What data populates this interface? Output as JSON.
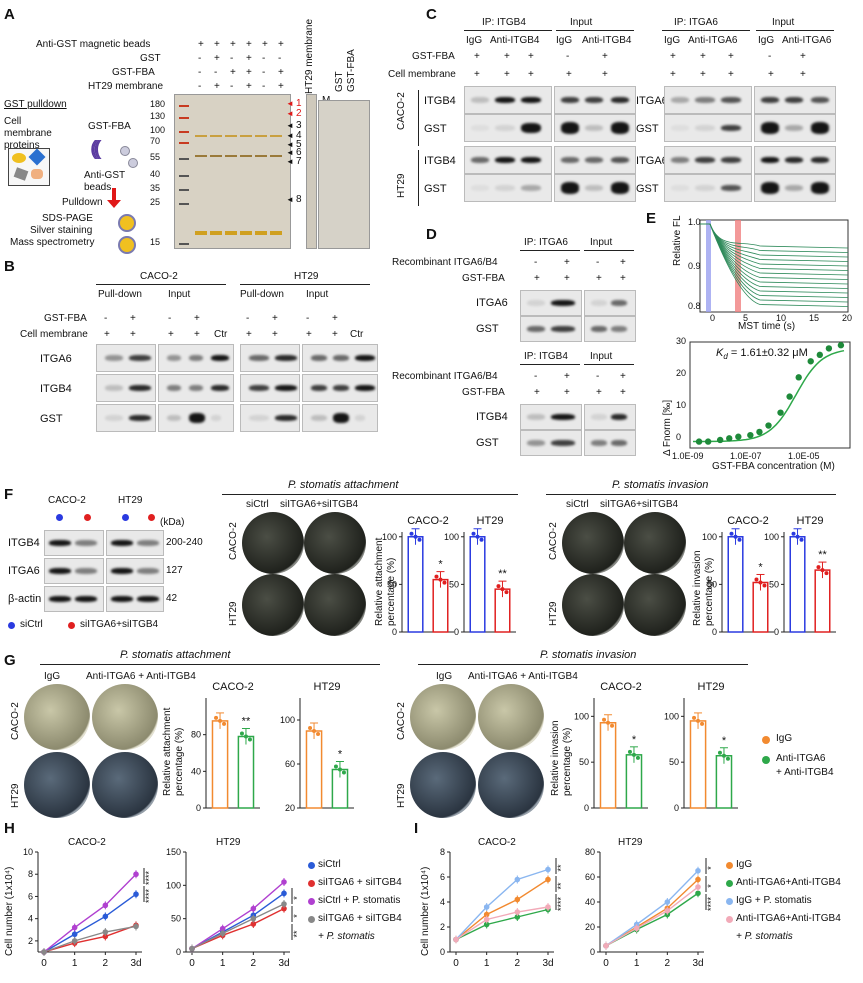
{
  "panels": {
    "A": "A",
    "B": "B",
    "C": "C",
    "D": "D",
    "E": "E",
    "F": "F",
    "G": "G",
    "H": "H",
    "I": "I"
  },
  "A": {
    "rows": [
      {
        "label": "Anti-GST magnetic beads",
        "signs": [
          "+",
          "+",
          "+",
          "+",
          "+",
          "+"
        ]
      },
      {
        "label": "GST",
        "signs": [
          "-",
          "+",
          "-",
          "+",
          "-",
          "-"
        ]
      },
      {
        "label": "GST-FBA",
        "signs": [
          "-",
          "-",
          "+",
          "+",
          "-",
          "+"
        ]
      },
      {
        "label": "HT29 membrane",
        "signs": [
          "-",
          "+",
          "-",
          "+",
          "-",
          "+"
        ]
      }
    ],
    "marker": "M",
    "mw": [
      "180",
      "130",
      "100",
      "70",
      "55",
      "40",
      "35",
      "25",
      "15"
    ],
    "bands": [
      "1",
      "2",
      "3",
      "4",
      "5",
      "6",
      "7",
      "8"
    ],
    "strip": "HT29 membrane",
    "m2": "M",
    "gst": "GST",
    "gstfba": "GST-FBA",
    "scheme": {
      "title": "GST pulldown",
      "cmp": "Cell membrane proteins",
      "gstfba": "GST-FBA",
      "beads": "Anti-GST beads",
      "pulldown": "Pulldown",
      "s1": "SDS-PAGE",
      "s2": "Silver staining",
      "s3": "Mass spectrometry"
    }
  },
  "B": {
    "cell1": "CACO-2",
    "cell2": "HT29",
    "pd": "Pull-down",
    "inp": "Input",
    "row1": "GST-FBA",
    "row2": "Cell membrane",
    "s1": [
      "-",
      "+",
      "-",
      "+",
      ""
    ],
    "s2": [
      "+",
      "+",
      "+",
      "+",
      "Ctr"
    ],
    "blots": [
      "ITGA6",
      "ITGB4",
      "GST"
    ]
  },
  "C": {
    "ip1": "IP: ITGB4",
    "inp": "Input",
    "ip2": "IP: ITGA6",
    "igg": "IgG",
    "anti1": "Anti-ITGB4",
    "anti2": "Anti-ITGA6",
    "row1": "GST-FBA",
    "row2": "Cell membrane",
    "s1": [
      "+",
      "+",
      "+",
      "-",
      "+"
    ],
    "s2": [
      "+",
      "+",
      "+",
      "+",
      "+"
    ],
    "cell1": "CACO-2",
    "cell2": "HT29",
    "left": [
      "ITGB4",
      "GST",
      "ITGB4",
      "GST"
    ],
    "right": [
      "ITGA6",
      "GST",
      "ITGA6",
      "GST"
    ]
  },
  "D": {
    "ip1": "IP: ITGA6",
    "ip2": "IP: ITGB4",
    "inp": "Input",
    "r1": "Recombinant ITGA6/B4",
    "r2": "GST-FBA",
    "s1": [
      "-",
      "+",
      "-",
      "+"
    ],
    "s2": [
      "+",
      "+",
      "+",
      "+"
    ],
    "top": [
      "ITGA6",
      "GST"
    ],
    "bot": [
      "ITGB4",
      "GST"
    ]
  },
  "E": {
    "ylabel1": "Relative FL",
    "xlabel1": "MST time (s)",
    "ylim1": [
      "1.0",
      "0.9",
      "0.8"
    ],
    "xt1": [
      "0",
      "5",
      "10",
      "15",
      "20"
    ],
    "ylabel2": "Δ Fnorm [‰]",
    "xlabel2": "GST-FBA concentration (M)",
    "yt2": [
      "30",
      "20",
      "10",
      "0"
    ],
    "xt2": [
      "1.0E-09",
      "1.0E-07",
      "1.0E-05"
    ],
    "kd_sym": "K",
    "kd_sub": "d",
    "kd_val": "= 1.61±0.32 μM"
  },
  "F": {
    "cell1": "CACO-2",
    "cell2": "HT29",
    "kda": "(kDa)",
    "blots": [
      {
        "n": "ITGB4",
        "kda": "200-240"
      },
      {
        "n": "ITGA6",
        "kda": "127"
      },
      {
        "n": "β-actin",
        "kda": "42"
      }
    ],
    "leg1": "siCtrl",
    "leg2": "siITGA6+siITGB4",
    "att": "P. stomatis attachment",
    "inv": "P. stomatis invasion",
    "siCtrl": "siCtrl",
    "siKD": "siITGA6+siITGB4",
    "ylab_att": "Relative attachment percentage (%)",
    "ylab_inv": "Relative invasion percentage (%)",
    "yt": [
      "100",
      "50",
      "0"
    ],
    "bars": [
      {
        "t": "CACO-2",
        "v": [
          100,
          55
        ],
        "s": "*"
      },
      {
        "t": "HT29",
        "v": [
          100,
          45
        ],
        "s": "**"
      },
      {
        "t": "CACO-2",
        "v": [
          100,
          52
        ],
        "s": "*"
      },
      {
        "t": "HT29",
        "v": [
          100,
          65
        ],
        "s": "**"
      }
    ]
  },
  "G": {
    "att": "P. stomatis attachment",
    "inv": "P. stomatis invasion",
    "igg": "IgG",
    "anti": "Anti-ITGA6 + Anti-ITGB4",
    "ylab_att": "Relative attachment percentage (%)",
    "ylab_inv": "Relative invasion percentage (%)",
    "bars": [
      {
        "t": "CACO-2",
        "yt": [
          "80",
          "40",
          "0"
        ],
        "v": [
          95,
          78
        ],
        "max": 120,
        "s": "**"
      },
      {
        "t": "HT29",
        "yt": [
          "100",
          "60",
          "20"
        ],
        "v": [
          90,
          55
        ],
        "max": 120,
        "s": "*"
      },
      {
        "t": "CACO-2",
        "yt": [
          "100",
          "50",
          "0"
        ],
        "v": [
          93,
          58
        ],
        "max": 120,
        "s": "*"
      },
      {
        "t": "HT29",
        "yt": [
          "100",
          "50",
          "0"
        ],
        "v": [
          95,
          57
        ],
        "max": 120,
        "s": "*"
      }
    ],
    "leg1": "IgG",
    "leg2a": "Anti-ITGA6",
    "leg2b": "+ Anti-ITGB4"
  },
  "H": {
    "ylabel": "Cell number (1x10⁴)",
    "p1": {
      "title": "CACO-2",
      "yt": [
        "10",
        "8",
        "6",
        "4",
        "2"
      ],
      "ymin": 1,
      "ymax": 10
    },
    "p2": {
      "title": "HT29",
      "yt": [
        "150",
        "100",
        "50",
        "0"
      ],
      "ymin": 0,
      "ymax": 150
    },
    "x": [
      "0",
      "1",
      "2",
      "3d"
    ],
    "legend": [
      "siCtrl",
      "siITGA6 + siITGB4",
      "siCtrl + P. stomatis",
      "siITGA6 + siITGB4"
    ],
    "legend_cont": "+ P. stomatis",
    "colors": [
      "#2a5bd7",
      "#e03030",
      "#b040d0",
      "#888888"
    ],
    "s1": [
      "****",
      "****"
    ],
    "s2": [
      "*",
      "*",
      "**"
    ]
  },
  "I": {
    "ylabel": "Cell number (1x10⁴)",
    "p1": {
      "title": "CACO-2",
      "yt": [
        "8",
        "6",
        "4",
        "2",
        "0"
      ],
      "ymin": 0,
      "ymax": 8
    },
    "p2": {
      "title": "HT29",
      "yt": [
        "80",
        "60",
        "40",
        "20",
        "0"
      ],
      "ymin": 0,
      "ymax": 80
    },
    "x": [
      "0",
      "1",
      "2",
      "3d"
    ],
    "legend": [
      "IgG",
      "Anti-ITGA6+Anti-ITGB4",
      "IgG + P. stomatis",
      "Anti-ITGA6+Anti-ITGB4"
    ],
    "legend_cont": "+ P. stomatis",
    "colors": [
      "#f28a30",
      "#2ea84a",
      "#8ab6f0",
      "#f2aab8"
    ],
    "s1": [
      "**",
      "**",
      "****"
    ],
    "s2": [
      "*",
      "*",
      "****"
    ]
  },
  "chart_data": [
    {
      "type": "scatter",
      "title": "",
      "xlabel": "GST-FBA concentration (M)",
      "ylabel": "Δ Fnorm [‰]",
      "x": [
        1e-09,
        2e-09,
        5e-09,
        1e-08,
        2e-08,
        5e-08,
        1e-07,
        2e-07,
        5e-07,
        1e-06,
        2e-06,
        5e-06,
        1e-05,
        2e-05,
        5e-05
      ],
      "y": [
        -1,
        -1,
        -0.5,
        0,
        0.5,
        1,
        2,
        4,
        8,
        13,
        19,
        24,
        26,
        28,
        29
      ],
      "xscale": "log",
      "ylim": [
        -3,
        30
      ]
    },
    {
      "type": "bar",
      "title": "CACO-2",
      "ylabel": "Relative attachment percentage (%)",
      "categories": [
        "siCtrl",
        "siITGA6+siITGB4"
      ],
      "values": [
        100,
        55
      ],
      "ylim": [
        0,
        100
      ]
    },
    {
      "type": "bar",
      "title": "HT29",
      "ylabel": "Relative attachment percentage (%)",
      "categories": [
        "siCtrl",
        "siITGA6+siITGB4"
      ],
      "values": [
        100,
        45
      ],
      "ylim": [
        0,
        100
      ]
    },
    {
      "type": "bar",
      "title": "CACO-2",
      "ylabel": "Relative invasion percentage (%)",
      "categories": [
        "siCtrl",
        "siITGA6+siITGB4"
      ],
      "values": [
        100,
        52
      ],
      "ylim": [
        0,
        100
      ]
    },
    {
      "type": "bar",
      "title": "HT29",
      "ylabel": "Relative invasion percentage (%)",
      "categories": [
        "siCtrl",
        "siITGA6+siITGB4"
      ],
      "values": [
        100,
        65
      ],
      "ylim": [
        0,
        100
      ]
    },
    {
      "type": "bar",
      "title": "CACO-2",
      "ylabel": "Relative attachment percentage (%)",
      "categories": [
        "IgG",
        "Anti-ITGA6 + Anti-ITGB4"
      ],
      "values": [
        95,
        78
      ]
    },
    {
      "type": "bar",
      "title": "HT29",
      "ylabel": "Relative attachment percentage (%)",
      "categories": [
        "IgG",
        "Anti-ITGA6 + Anti-ITGB4"
      ],
      "values": [
        90,
        55
      ]
    },
    {
      "type": "bar",
      "title": "CACO-2",
      "ylabel": "Relative invasion percentage (%)",
      "categories": [
        "IgG",
        "Anti-ITGA6 + Anti-ITGB4"
      ],
      "values": [
        93,
        58
      ]
    },
    {
      "type": "bar",
      "title": "HT29",
      "ylabel": "Relative invasion percentage (%)",
      "categories": [
        "IgG",
        "Anti-ITGA6 + Anti-ITGB4"
      ],
      "values": [
        95,
        57
      ]
    },
    {
      "type": "line",
      "title": "CACO-2",
      "xlabel": "",
      "ylabel": "Cell number (1x10⁴)",
      "x": [
        0,
        1,
        2,
        3
      ],
      "series": [
        {
          "name": "siCtrl",
          "values": [
            1,
            2.6,
            4.2,
            6.2
          ]
        },
        {
          "name": "siITGA6 + siITGB4",
          "values": [
            1,
            1.8,
            2.4,
            3.4
          ]
        },
        {
          "name": "siCtrl + P. stomatis",
          "values": [
            1,
            3.2,
            5.2,
            8
          ]
        },
        {
          "name": "siITGA6 + siITGB4 + P. stomatis",
          "values": [
            1,
            2,
            2.8,
            3.3
          ]
        }
      ]
    },
    {
      "type": "line",
      "title": "HT29",
      "ylabel": "Cell number (1x10⁴)",
      "x": [
        0,
        1,
        2,
        3
      ],
      "series": [
        {
          "name": "siCtrl",
          "values": [
            5,
            30,
            55,
            88
          ]
        },
        {
          "name": "siITGA6 + siITGB4",
          "values": [
            5,
            25,
            42,
            65
          ]
        },
        {
          "name": "siCtrl + P. stomatis",
          "values": [
            5,
            35,
            65,
            105
          ]
        },
        {
          "name": "siITGA6 + siITGB4 + P. stomatis",
          "values": [
            5,
            28,
            50,
            72
          ]
        }
      ]
    },
    {
      "type": "line",
      "title": "CACO-2",
      "ylabel": "Cell number (1x10⁴)",
      "x": [
        0,
        1,
        2,
        3
      ],
      "series": [
        {
          "name": "IgG",
          "values": [
            1,
            3,
            4.2,
            5.8
          ]
        },
        {
          "name": "Anti-ITGA6+Anti-ITGB4",
          "values": [
            1,
            2.2,
            2.8,
            3.4
          ]
        },
        {
          "name": "IgG + P. stomatis",
          "values": [
            1,
            3.6,
            5.8,
            6.6
          ]
        },
        {
          "name": "Anti-ITGA6+Anti-ITGB4 + P. stomatis",
          "values": [
            1,
            2.6,
            3.2,
            3.6
          ]
        }
      ]
    },
    {
      "type": "line",
      "title": "HT29",
      "ylabel": "Cell number (1x10⁴)",
      "x": [
        0,
        1,
        2,
        3
      ],
      "series": [
        {
          "name": "IgG",
          "values": [
            5,
            20,
            35,
            58
          ]
        },
        {
          "name": "Anti-ITGA6+Anti-ITGB4",
          "values": [
            5,
            18,
            30,
            47
          ]
        },
        {
          "name": "IgG + P. stomatis",
          "values": [
            5,
            22,
            40,
            65
          ]
        },
        {
          "name": "Anti-ITGA6+Anti-ITGB4 + P. stomatis",
          "values": [
            5,
            19,
            33,
            52
          ]
        }
      ]
    }
  ]
}
